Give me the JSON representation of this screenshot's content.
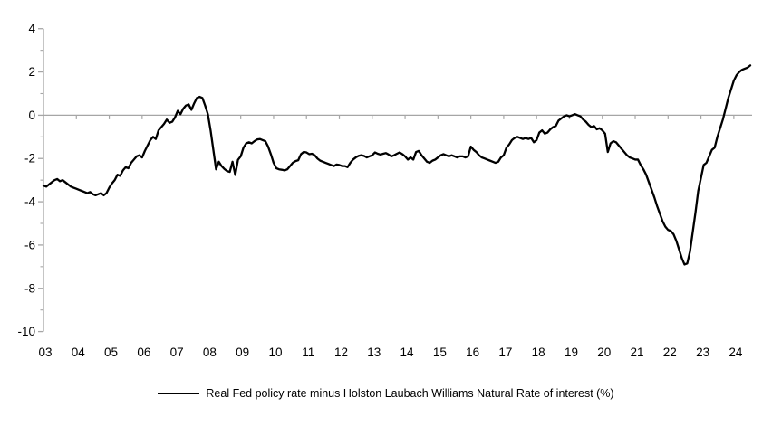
{
  "chart_data": {
    "type": "line",
    "title": "",
    "xlabel": "",
    "ylabel": "",
    "ylim": [
      -10,
      4
    ],
    "y_ticks": [
      4,
      2,
      0,
      -2,
      -4,
      -6,
      -8,
      -10
    ],
    "y_minor_ticks": [
      3,
      1,
      -1,
      -3,
      -5,
      -7,
      -9
    ],
    "x_tick_labels": [
      "03",
      "04",
      "05",
      "06",
      "07",
      "08",
      "09",
      "10",
      "11",
      "12",
      "13",
      "14",
      "15",
      "16",
      "17",
      "18",
      "19",
      "20",
      "21",
      "22",
      "23",
      "24"
    ],
    "grid": false,
    "zero_line": true,
    "legend_position": "bottom",
    "frequency": "monthly",
    "start_period": "2003-01",
    "end_period": "2024-07",
    "series": [
      {
        "name": "Real Fed policy rate minus Holston Laubach Williams Natural Rate of interest (%)",
        "color": "#000000",
        "values": [
          -3.25,
          -3.3,
          -3.2,
          -3.1,
          -3.0,
          -2.95,
          -3.05,
          -3.0,
          -3.1,
          -3.2,
          -3.3,
          -3.35,
          -3.4,
          -3.45,
          -3.5,
          -3.55,
          -3.6,
          -3.55,
          -3.65,
          -3.7,
          -3.65,
          -3.6,
          -3.7,
          -3.6,
          -3.35,
          -3.15,
          -3.0,
          -2.75,
          -2.8,
          -2.55,
          -2.4,
          -2.45,
          -2.2,
          -2.05,
          -1.9,
          -1.85,
          -1.95,
          -1.65,
          -1.4,
          -1.15,
          -1.0,
          -1.1,
          -0.7,
          -0.55,
          -0.4,
          -0.2,
          -0.35,
          -0.3,
          -0.1,
          0.2,
          0.05,
          0.3,
          0.45,
          0.5,
          0.25,
          0.55,
          0.8,
          0.85,
          0.8,
          0.45,
          0.05,
          -0.7,
          -1.6,
          -2.5,
          -2.15,
          -2.35,
          -2.48,
          -2.58,
          -2.62,
          -2.15,
          -2.76,
          -2.06,
          -1.9,
          -1.5,
          -1.3,
          -1.25,
          -1.3,
          -1.2,
          -1.12,
          -1.1,
          -1.15,
          -1.2,
          -1.45,
          -1.8,
          -2.2,
          -2.45,
          -2.5,
          -2.52,
          -2.55,
          -2.5,
          -2.35,
          -2.2,
          -2.12,
          -2.08,
          -1.8,
          -1.7,
          -1.72,
          -1.8,
          -1.78,
          -1.85,
          -2.0,
          -2.1,
          -2.15,
          -2.2,
          -2.25,
          -2.3,
          -2.35,
          -2.28,
          -2.3,
          -2.35,
          -2.35,
          -2.4,
          -2.2,
          -2.05,
          -1.95,
          -1.88,
          -1.85,
          -1.88,
          -1.95,
          -1.9,
          -1.85,
          -1.72,
          -1.78,
          -1.82,
          -1.78,
          -1.75,
          -1.82,
          -1.9,
          -1.85,
          -1.78,
          -1.72,
          -1.8,
          -1.9,
          -2.05,
          -1.95,
          -2.05,
          -1.7,
          -1.65,
          -1.85,
          -2.0,
          -2.15,
          -2.2,
          -2.1,
          -2.05,
          -1.95,
          -1.85,
          -1.8,
          -1.85,
          -1.9,
          -1.85,
          -1.9,
          -1.95,
          -1.9,
          -1.9,
          -1.95,
          -1.9,
          -1.45,
          -1.6,
          -1.7,
          -1.85,
          -1.95,
          -2.0,
          -2.05,
          -2.1,
          -2.15,
          -2.2,
          -2.15,
          -1.95,
          -1.85,
          -1.5,
          -1.35,
          -1.15,
          -1.05,
          -1.0,
          -1.05,
          -1.1,
          -1.05,
          -1.1,
          -1.05,
          -1.25,
          -1.15,
          -0.8,
          -0.7,
          -0.85,
          -0.8,
          -0.65,
          -0.55,
          -0.5,
          -0.25,
          -0.15,
          -0.05,
          0.0,
          -0.05,
          0.0,
          0.05,
          0.0,
          -0.05,
          -0.2,
          -0.3,
          -0.45,
          -0.55,
          -0.5,
          -0.65,
          -0.6,
          -0.7,
          -0.85,
          -1.7,
          -1.3,
          -1.2,
          -1.25,
          -1.4,
          -1.55,
          -1.7,
          -1.85,
          -1.95,
          -2.0,
          -2.05,
          -2.05,
          -2.3,
          -2.5,
          -2.75,
          -3.1,
          -3.45,
          -3.8,
          -4.2,
          -4.55,
          -4.9,
          -5.15,
          -5.3,
          -5.35,
          -5.5,
          -5.8,
          -6.2,
          -6.6,
          -6.9,
          -6.85,
          -6.3,
          -5.4,
          -4.5,
          -3.5,
          -2.9,
          -2.3,
          -2.2,
          -1.9,
          -1.6,
          -1.5,
          -1.0,
          -0.6,
          -0.2,
          0.3,
          0.8,
          1.2,
          1.6,
          1.85,
          2.0,
          2.1,
          2.15,
          2.2,
          2.3
        ]
      }
    ]
  },
  "colors": {
    "background": "#FFFFFF",
    "axis": "#A6A6A6",
    "tick": "#A6A6A6",
    "text": "#000000",
    "line": "#000000"
  },
  "legend": {
    "label": "Real Fed policy rate minus Holston Laubach Williams Natural Rate of interest (%)"
  }
}
